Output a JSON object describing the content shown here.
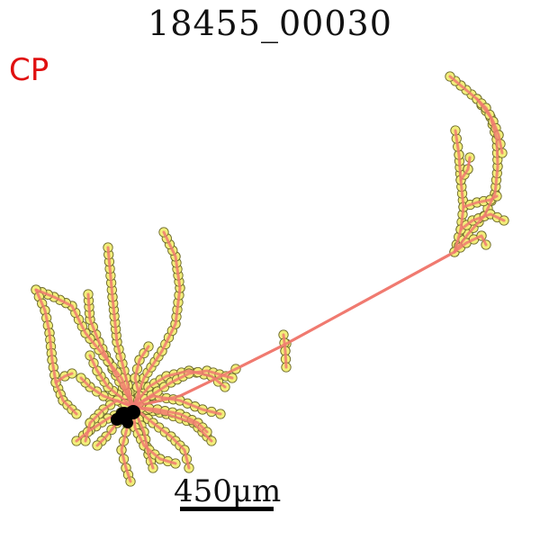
{
  "figure": {
    "title": "18455_00030",
    "tag": "CP",
    "tag_color": "#e01010",
    "scale_bar_label": "450μm"
  },
  "colors": {
    "branch": "#f07a70",
    "node_fill": "#f2ee7a",
    "node_stroke": "#6d6a2a",
    "soma": "#000000"
  }
}
